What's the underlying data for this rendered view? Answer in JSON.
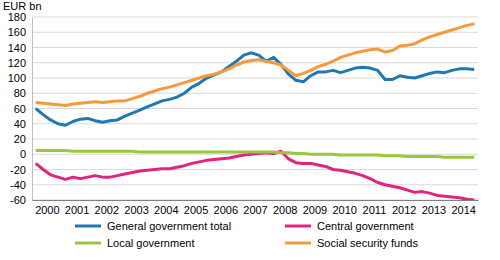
{
  "chart_data": {
    "type": "line",
    "y_label": "EUR bn",
    "categories": [
      null,
      null,
      "2000",
      null,
      null,
      null,
      "2001",
      null,
      null,
      null,
      "2002",
      null,
      null,
      null,
      "2003",
      null,
      null,
      null,
      "2004",
      null,
      null,
      null,
      "2005",
      null,
      null,
      null,
      "2006",
      null,
      null,
      null,
      "2007",
      null,
      null,
      null,
      "2008",
      null,
      null,
      null,
      "2009",
      null,
      null,
      null,
      "2010",
      null,
      null,
      null,
      "2011",
      null,
      null,
      null,
      "2012",
      null,
      null,
      null,
      "2013",
      null,
      null,
      null,
      "2014",
      null
    ],
    "series": [
      {
        "name": "General government total",
        "color": "#1f78b4",
        "values": [
          60,
          52,
          45,
          40,
          38,
          43,
          46,
          47,
          44,
          42,
          44,
          45,
          50,
          54,
          58,
          62,
          66,
          70,
          72,
          75,
          80,
          88,
          93,
          100,
          104,
          108,
          115,
          122,
          130,
          133,
          130,
          122,
          127,
          118,
          105,
          97,
          95,
          103,
          108,
          108,
          110,
          107,
          110,
          113,
          114,
          113,
          110,
          98,
          98,
          103,
          101,
          100,
          103,
          106,
          108,
          107,
          110,
          112,
          112,
          111
        ]
      },
      {
        "name": "Central government",
        "color": "#e2237f",
        "values": [
          -12,
          -20,
          -27,
          -30,
          -33,
          -30,
          -32,
          -30,
          -28,
          -30,
          -30,
          -28,
          -26,
          -24,
          -22,
          -21,
          -20,
          -19,
          -19,
          -17,
          -15,
          -12,
          -10,
          -8,
          -7,
          -6,
          -5,
          -3,
          -1,
          0,
          1,
          2,
          1,
          4,
          -6,
          -11,
          -12,
          -12,
          -14,
          -16,
          -20,
          -21,
          -23,
          -25,
          -28,
          -32,
          -37,
          -40,
          -42,
          -44,
          -47,
          -50,
          -49,
          -51,
          -54,
          -55,
          -56,
          -57,
          -59,
          -60
        ]
      },
      {
        "name": "Local government",
        "color": "#9cc63b",
        "values": [
          5,
          5,
          5,
          5,
          5,
          4,
          4,
          4,
          4,
          4,
          4,
          4,
          4,
          4,
          3,
          3,
          3,
          3,
          3,
          3,
          3,
          3,
          3,
          3,
          3,
          3,
          3,
          3,
          3,
          3,
          3,
          3,
          3,
          2,
          2,
          1,
          1,
          0,
          0,
          0,
          0,
          -1,
          -1,
          -1,
          -1,
          -1,
          -1,
          -2,
          -2,
          -2,
          -3,
          -3,
          -3,
          -3,
          -3,
          -4,
          -4,
          -4,
          -4,
          -4
        ]
      },
      {
        "name": "Social security funds",
        "color": "#f7993a",
        "values": [
          68,
          67,
          66,
          65,
          64,
          66,
          67,
          68,
          69,
          68,
          69,
          70,
          70,
          73,
          76,
          80,
          83,
          86,
          88,
          91,
          94,
          97,
          100,
          103,
          105,
          108,
          112,
          117,
          121,
          123,
          124,
          122,
          120,
          117,
          110,
          103,
          106,
          110,
          115,
          118,
          122,
          127,
          130,
          133,
          135,
          137,
          138,
          134,
          136,
          142,
          143,
          145,
          150,
          154,
          157,
          160,
          163,
          166,
          169,
          171
        ]
      }
    ],
    "ylim": [
      -60,
      180
    ],
    "yticks": [
      -60,
      -40,
      -20,
      0,
      20,
      40,
      60,
      80,
      100,
      120,
      140,
      160,
      180
    ],
    "grid": true,
    "legend": "bottom"
  }
}
